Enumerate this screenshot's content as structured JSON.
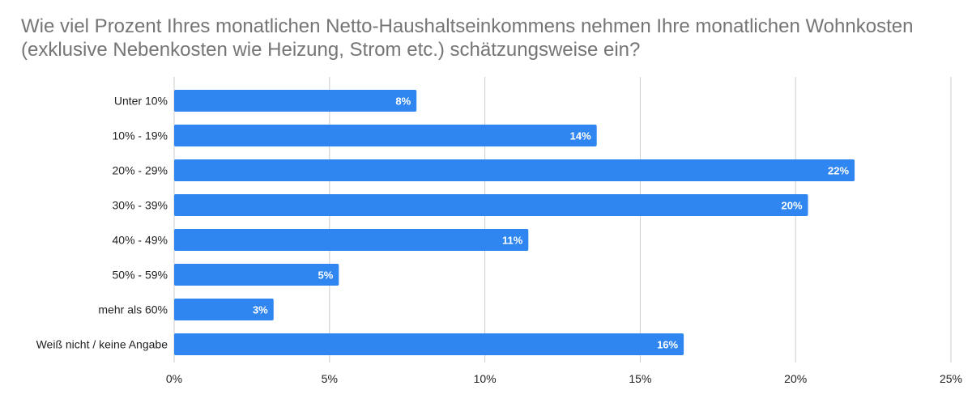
{
  "chart_data": {
    "type": "bar",
    "orientation": "horizontal",
    "title": "Wie viel Prozent Ihres monatlichen Netto-Haushaltseinkommens nehmen Ihre monatlichen Wohnkosten (exklusive Nebenkosten wie Heizung, Strom etc.) schätzungsweise ein?",
    "categories": [
      "Unter 10%",
      "10% - 19%",
      "20% - 29%",
      "30% - 39%",
      "40% - 49%",
      "50% - 59%",
      "mehr als 60%",
      "Weiß nicht / keine Angabe"
    ],
    "values": [
      7.8,
      13.6,
      21.9,
      20.4,
      11.4,
      5.3,
      3.2,
      16.4
    ],
    "value_labels": [
      "8%",
      "14%",
      "22%",
      "20%",
      "11%",
      "5%",
      "3%",
      "16%"
    ],
    "xlim": [
      0,
      25
    ],
    "xticks": [
      0,
      5,
      10,
      15,
      20,
      25
    ],
    "xtick_labels": [
      "0%",
      "5%",
      "10%",
      "15%",
      "20%",
      "25%"
    ],
    "grid": "vertical",
    "bar_color": "#2f86f0",
    "grid_color": "#cccccc",
    "data_label_color": "#ffffff"
  }
}
